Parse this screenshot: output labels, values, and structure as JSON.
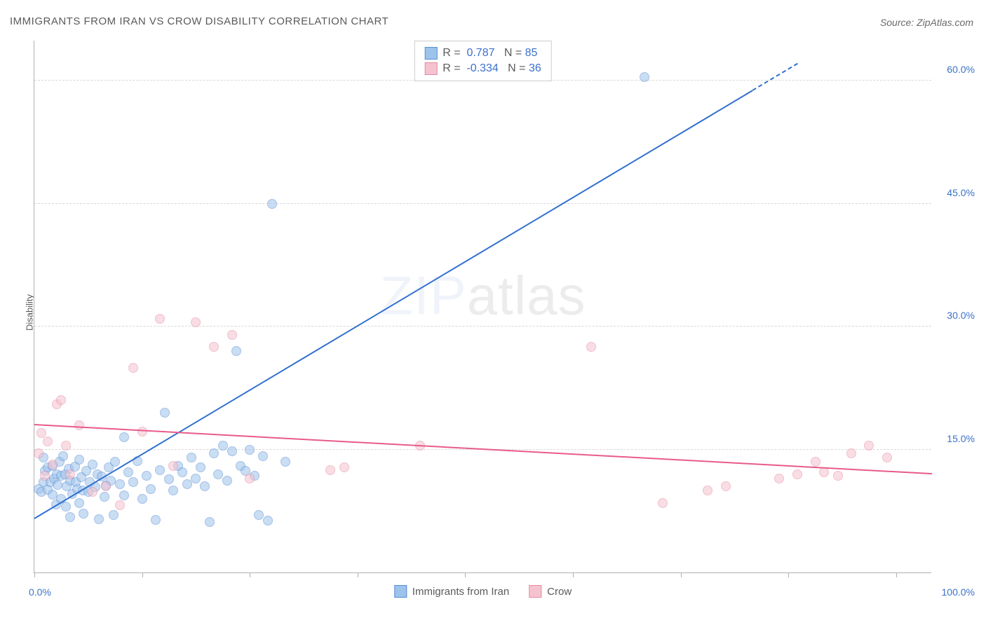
{
  "title": "IMMIGRANTS FROM IRAN VS CROW DISABILITY CORRELATION CHART",
  "source": "Source: ZipAtlas.com",
  "ylabel": "Disability",
  "watermark": {
    "part1": "ZIP",
    "part2": "atlas"
  },
  "chart": {
    "type": "scatter",
    "xlim": [
      0,
      100
    ],
    "ylim": [
      0,
      65
    ],
    "background_color": "#ffffff",
    "grid_color": "#d8d8d8",
    "axis_color": "#b0b0b0",
    "x_tick_positions": [
      0,
      12,
      24,
      36,
      48,
      60,
      72,
      84,
      96
    ],
    "x_label_min": "0.0%",
    "x_label_max": "100.0%",
    "y_gridlines": [
      15,
      30,
      45,
      60
    ],
    "y_labels": [
      "15.0%",
      "30.0%",
      "45.0%",
      "60.0%"
    ],
    "tick_label_color": "#3b71c9",
    "tick_label_fontsize": 14,
    "point_radius": 7,
    "point_opacity": 0.55,
    "series": [
      {
        "name": "Immigrants from Iran",
        "fill_color": "#9ec3ea",
        "stroke_color": "#5a8fd6",
        "trend": {
          "x1": 0,
          "y1": 6.5,
          "x2": 85,
          "y2": 62,
          "dashed_after_x": 80,
          "color": "#2f6fcf",
          "width": 2
        },
        "legend_top": {
          "R_label": "R =",
          "R": "0.787",
          "N_label": "N =",
          "N": "85"
        },
        "points": [
          [
            0.5,
            10.2
          ],
          [
            0.8,
            9.8
          ],
          [
            1.0,
            11.0
          ],
          [
            1.0,
            14.0
          ],
          [
            1.2,
            12.4
          ],
          [
            1.5,
            10.1
          ],
          [
            1.5,
            12.8
          ],
          [
            1.8,
            11.0
          ],
          [
            2.0,
            9.5
          ],
          [
            2.0,
            13.0
          ],
          [
            2.2,
            11.5
          ],
          [
            2.4,
            8.3
          ],
          [
            2.5,
            12.0
          ],
          [
            2.6,
            10.7
          ],
          [
            2.8,
            13.5
          ],
          [
            3.0,
            9.0
          ],
          [
            3.0,
            11.8
          ],
          [
            3.2,
            14.2
          ],
          [
            3.4,
            12.0
          ],
          [
            3.5,
            8.0
          ],
          [
            3.6,
            10.5
          ],
          [
            3.8,
            12.7
          ],
          [
            4.0,
            11.2
          ],
          [
            4.0,
            6.8
          ],
          [
            4.2,
            9.6
          ],
          [
            4.5,
            12.9
          ],
          [
            4.6,
            11.0
          ],
          [
            4.8,
            10.2
          ],
          [
            5.0,
            13.8
          ],
          [
            5.0,
            8.5
          ],
          [
            5.2,
            11.6
          ],
          [
            5.4,
            10.0
          ],
          [
            5.5,
            7.2
          ],
          [
            5.8,
            12.4
          ],
          [
            6.0,
            9.8
          ],
          [
            6.2,
            11.0
          ],
          [
            6.5,
            13.2
          ],
          [
            6.8,
            10.4
          ],
          [
            7.0,
            12.0
          ],
          [
            7.2,
            6.5
          ],
          [
            7.5,
            11.7
          ],
          [
            7.8,
            9.2
          ],
          [
            8.0,
            10.6
          ],
          [
            8.3,
            12.8
          ],
          [
            8.5,
            11.2
          ],
          [
            8.8,
            7.0
          ],
          [
            9.0,
            13.5
          ],
          [
            9.5,
            10.8
          ],
          [
            10.0,
            16.5
          ],
          [
            10.0,
            9.4
          ],
          [
            10.5,
            12.2
          ],
          [
            11.0,
            11.0
          ],
          [
            11.5,
            13.6
          ],
          [
            12.0,
            9.0
          ],
          [
            12.5,
            11.8
          ],
          [
            13.0,
            10.2
          ],
          [
            13.5,
            6.4
          ],
          [
            14.0,
            12.5
          ],
          [
            14.5,
            19.5
          ],
          [
            15.0,
            11.4
          ],
          [
            15.5,
            10.0
          ],
          [
            16.0,
            13.0
          ],
          [
            16.5,
            12.2
          ],
          [
            17.0,
            10.8
          ],
          [
            17.5,
            14.0
          ],
          [
            18.0,
            11.5
          ],
          [
            18.5,
            12.8
          ],
          [
            19.0,
            10.5
          ],
          [
            19.5,
            6.2
          ],
          [
            20.0,
            14.5
          ],
          [
            20.5,
            12.0
          ],
          [
            21.0,
            15.5
          ],
          [
            21.5,
            11.2
          ],
          [
            22.0,
            14.8
          ],
          [
            22.5,
            27.0
          ],
          [
            23.0,
            13.0
          ],
          [
            23.5,
            12.4
          ],
          [
            24.0,
            15.0
          ],
          [
            24.5,
            11.8
          ],
          [
            25.0,
            7.0
          ],
          [
            25.5,
            14.2
          ],
          [
            26.0,
            6.3
          ],
          [
            26.5,
            45.0
          ],
          [
            28.0,
            13.5
          ],
          [
            68.0,
            60.5
          ]
        ]
      },
      {
        "name": "Crow",
        "fill_color": "#f5c3cf",
        "stroke_color": "#e68aa3",
        "trend": {
          "x1": 0,
          "y1": 18.0,
          "x2": 100,
          "y2": 12.0,
          "color": "#e85b8a",
          "width": 2
        },
        "legend_top": {
          "R_label": "R =",
          "R": "-0.334",
          "N_label": "N =",
          "N": "36"
        },
        "points": [
          [
            0.5,
            14.5
          ],
          [
            0.8,
            17.0
          ],
          [
            1.2,
            11.8
          ],
          [
            1.5,
            16.0
          ],
          [
            2.0,
            13.2
          ],
          [
            2.5,
            20.5
          ],
          [
            3.0,
            21.0
          ],
          [
            3.5,
            15.5
          ],
          [
            4.0,
            12.0
          ],
          [
            5.0,
            18.0
          ],
          [
            6.5,
            9.8
          ],
          [
            8.0,
            10.5
          ],
          [
            9.5,
            8.2
          ],
          [
            11.0,
            25.0
          ],
          [
            12.0,
            17.2
          ],
          [
            14.0,
            31.0
          ],
          [
            15.5,
            13.0
          ],
          [
            18.0,
            30.5
          ],
          [
            20.0,
            27.5
          ],
          [
            22.0,
            29.0
          ],
          [
            24.0,
            11.5
          ],
          [
            33.0,
            12.5
          ],
          [
            34.5,
            12.8
          ],
          [
            43.0,
            15.5
          ],
          [
            62.0,
            27.5
          ],
          [
            70.0,
            8.5
          ],
          [
            75.0,
            10.0
          ],
          [
            77.0,
            10.5
          ],
          [
            83.0,
            11.5
          ],
          [
            85.0,
            12.0
          ],
          [
            87.0,
            13.5
          ],
          [
            88.0,
            12.2
          ],
          [
            89.5,
            11.8
          ],
          [
            91.0,
            14.5
          ],
          [
            93.0,
            15.5
          ],
          [
            95.0,
            14.0
          ]
        ]
      }
    ]
  },
  "legend_bottom": {
    "items": [
      "Immigrants from Iran",
      "Crow"
    ]
  }
}
